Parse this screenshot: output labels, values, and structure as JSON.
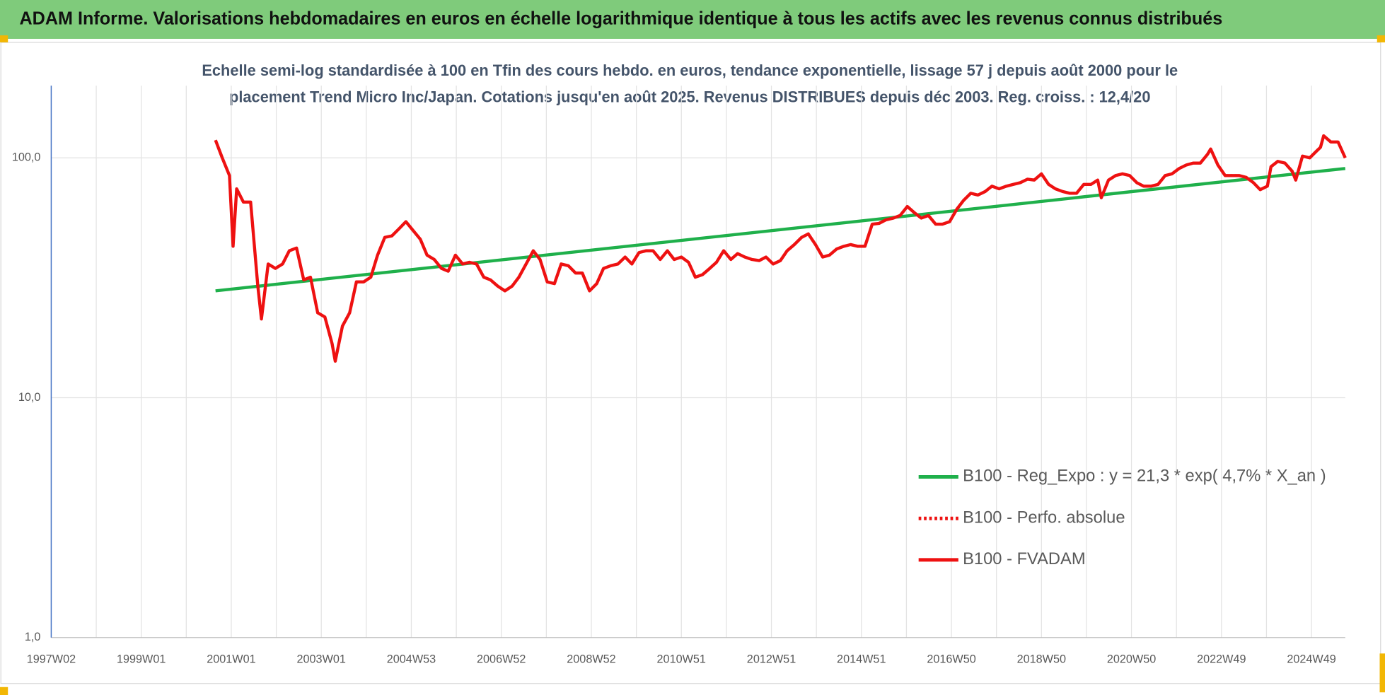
{
  "chart_data": {
    "type": "line",
    "title": "ADAM Informe. Valorisations hebdomadaires en euros en échelle logarithmique identique à tous les actifs avec les revenus connus distribués",
    "subtitle": [
      "Echelle semi-log standardisée à 100 en Tfin des cours hebdo. en euros, tendance exponentielle, lissage 57 j depuis août 2000 pour le",
      "placement Trend Micro Inc/Japan. Cotations jusqu'en août 2025. Revenus DISTRIBUES depuis déc 2003. Reg. croiss. : 12,4/20"
    ],
    "log_scale_y": true,
    "grid": true,
    "legend": "lower right",
    "xlim": [
      1997,
      2025.75
    ],
    "ylim": [
      1,
      200
    ],
    "yticks": [
      {
        "value": 1,
        "label": "1,0"
      },
      {
        "value": 10,
        "label": "10,0"
      },
      {
        "value": 100,
        "label": "100,0"
      }
    ],
    "xticks": [
      {
        "value": 1997,
        "label": "1997W02"
      },
      {
        "value": 1999,
        "label": "1999W01"
      },
      {
        "value": 2001,
        "label": "2001W01"
      },
      {
        "value": 2003,
        "label": "2003W01"
      },
      {
        "value": 2005,
        "label": "2004W53"
      },
      {
        "value": 2007,
        "label": "2006W52"
      },
      {
        "value": 2009,
        "label": "2008W52"
      },
      {
        "value": 2011,
        "label": "2010W51"
      },
      {
        "value": 2013,
        "label": "2012W51"
      },
      {
        "value": 2015,
        "label": "2014W51"
      },
      {
        "value": 2017,
        "label": "2016W50"
      },
      {
        "value": 2019,
        "label": "2018W50"
      },
      {
        "value": 2021,
        "label": "2020W50"
      },
      {
        "value": 2023,
        "label": "2022W49"
      },
      {
        "value": 2025,
        "label": "2024W49"
      }
    ],
    "x_minor_grid": [
      1998,
      2000,
      2002,
      2004,
      2006,
      2008,
      2010,
      2012,
      2014,
      2016,
      2018,
      2020,
      2022,
      2024
    ],
    "series": [
      {
        "name": "B100 - Reg_Expo : y = 21,3 * exp( 4,7% *  X_an )",
        "color": "#1fb04b",
        "style": "solid",
        "x": [
          2000.65,
          2025.75
        ],
        "values": [
          27.9,
          90.3
        ]
      },
      {
        "name": "B100 - Perfo. absolue",
        "color": "#ee1111",
        "style": "dotted",
        "x": [
          2000.65,
          2000.8,
          2000.96,
          2001.04,
          2001.12,
          2001.27,
          2001.43,
          2001.59,
          2001.67,
          2001.82,
          2001.98,
          2002.14,
          2002.29,
          2002.45,
          2002.61,
          2002.76,
          2002.92,
          2003.08,
          2003.24,
          2003.31,
          2003.47,
          2003.63,
          2003.78,
          2003.94,
          2004.1,
          2004.25,
          2004.41,
          2004.57,
          2004.73,
          2004.88,
          2005.04,
          2005.2,
          2005.35,
          2005.51,
          2005.67,
          2005.82,
          2005.98,
          2006.14,
          2006.29,
          2006.45,
          2006.61,
          2006.76,
          2006.92,
          2007.08,
          2007.24,
          2007.39,
          2007.55,
          2007.71,
          2007.86,
          2008.02,
          2008.18,
          2008.33,
          2008.49,
          2008.65,
          2008.8,
          2008.96,
          2009.12,
          2009.27,
          2009.43,
          2009.59,
          2009.75,
          2009.9,
          2010.06,
          2010.22,
          2010.37,
          2010.53,
          2010.69,
          2010.84,
          2011.0,
          2011.16,
          2011.31,
          2011.47,
          2011.63,
          2011.78,
          2011.94,
          2012.1,
          2012.25,
          2012.41,
          2012.57,
          2012.73,
          2012.88,
          2013.04,
          2013.2,
          2013.35,
          2013.51,
          2013.67,
          2013.82,
          2013.98,
          2014.14,
          2014.29,
          2014.45,
          2014.61,
          2014.76,
          2014.92,
          2015.08,
          2015.24,
          2015.39,
          2015.55,
          2015.71,
          2015.86,
          2016.02,
          2016.18,
          2016.33,
          2016.49,
          2016.65,
          2016.8,
          2016.96,
          2017.12,
          2017.27,
          2017.43,
          2017.59,
          2017.75,
          2017.9,
          2018.06,
          2018.22,
          2018.37,
          2018.53,
          2018.69,
          2018.84,
          2019.0,
          2019.16,
          2019.31,
          2019.47,
          2019.63,
          2019.78,
          2019.94,
          2020.1,
          2020.25,
          2020.33,
          2020.49,
          2020.65,
          2020.8,
          2020.96,
          2021.12,
          2021.27,
          2021.43,
          2021.59,
          2021.75,
          2021.9,
          2022.06,
          2022.22,
          2022.37,
          2022.53,
          2022.69,
          2022.76,
          2022.92,
          2023.08,
          2023.24,
          2023.39,
          2023.55,
          2023.71,
          2023.86,
          2024.02,
          2024.1,
          2024.25,
          2024.41,
          2024.57,
          2024.65,
          2024.8,
          2024.96,
          2025.12,
          2025.2,
          2025.27,
          2025.43,
          2025.59,
          2025.75
        ],
        "values": [
          118.5,
          100.0,
          84.4,
          42.8,
          74.3,
          65.4,
          65.4,
          29.2,
          21.3,
          36.1,
          34.6,
          36.1,
          41.0,
          42.1,
          31.0,
          31.8,
          22.6,
          21.7,
          16.8,
          14.2,
          19.9,
          22.6,
          30.4,
          30.4,
          31.8,
          39.3,
          46.6,
          47.3,
          50.7,
          54.2,
          49.8,
          45.8,
          39.3,
          37.7,
          34.6,
          33.7,
          39.3,
          36.1,
          36.7,
          36.1,
          31.8,
          31.0,
          29.2,
          27.9,
          29.2,
          31.8,
          36.1,
          41.0,
          37.7,
          30.4,
          29.9,
          36.1,
          35.5,
          33.1,
          33.1,
          27.9,
          29.9,
          34.6,
          35.5,
          36.1,
          38.6,
          36.1,
          40.3,
          41.0,
          41.0,
          37.7,
          41.0,
          37.7,
          38.6,
          36.7,
          31.8,
          32.6,
          34.6,
          36.7,
          41.0,
          37.7,
          39.9,
          38.6,
          37.7,
          37.3,
          38.6,
          36.1,
          37.3,
          41.0,
          43.5,
          46.6,
          48.2,
          43.5,
          38.6,
          39.3,
          41.7,
          42.8,
          43.5,
          42.8,
          42.8,
          52.9,
          53.3,
          55.2,
          56.1,
          57.5,
          62.7,
          59.0,
          56.1,
          57.5,
          52.9,
          52.9,
          54.2,
          61.1,
          66.5,
          71.2,
          70.0,
          72.4,
          76.2,
          74.3,
          76.2,
          77.5,
          78.8,
          81.5,
          80.8,
          85.8,
          77.5,
          74.3,
          72.4,
          71.2,
          71.2,
          77.5,
          77.5,
          80.8,
          68.2,
          80.8,
          84.4,
          85.8,
          84.4,
          78.8,
          76.2,
          76.2,
          77.5,
          84.4,
          85.8,
          90.3,
          93.4,
          95.1,
          95.1,
          103.5,
          108.9,
          93.4,
          84.4,
          84.4,
          84.4,
          82.9,
          78.8,
          73.7,
          76.2,
          91.9,
          96.7,
          95.1,
          88.0,
          80.8,
          101.7,
          100.0,
          107.1,
          110.7,
          123.6,
          116.5,
          116.5,
          100.0
        ]
      },
      {
        "name": "B100 - FVADAM",
        "color": "#ee1111",
        "style": "solid",
        "x": [
          2000.65,
          2000.8,
          2000.96,
          2001.04,
          2001.12,
          2001.27,
          2001.43,
          2001.59,
          2001.67,
          2001.82,
          2001.98,
          2002.14,
          2002.29,
          2002.45,
          2002.61,
          2002.76,
          2002.92,
          2003.08,
          2003.24,
          2003.31,
          2003.47,
          2003.63,
          2003.78,
          2003.94,
          2004.1,
          2004.25,
          2004.41,
          2004.57,
          2004.73,
          2004.88,
          2005.04,
          2005.2,
          2005.35,
          2005.51,
          2005.67,
          2005.82,
          2005.98,
          2006.14,
          2006.29,
          2006.45,
          2006.61,
          2006.76,
          2006.92,
          2007.08,
          2007.24,
          2007.39,
          2007.55,
          2007.71,
          2007.86,
          2008.02,
          2008.18,
          2008.33,
          2008.49,
          2008.65,
          2008.8,
          2008.96,
          2009.12,
          2009.27,
          2009.43,
          2009.59,
          2009.75,
          2009.9,
          2010.06,
          2010.22,
          2010.37,
          2010.53,
          2010.69,
          2010.84,
          2011.0,
          2011.16,
          2011.31,
          2011.47,
          2011.63,
          2011.78,
          2011.94,
          2012.1,
          2012.25,
          2012.41,
          2012.57,
          2012.73,
          2012.88,
          2013.04,
          2013.2,
          2013.35,
          2013.51,
          2013.67,
          2013.82,
          2013.98,
          2014.14,
          2014.29,
          2014.45,
          2014.61,
          2014.76,
          2014.92,
          2015.08,
          2015.24,
          2015.39,
          2015.55,
          2015.71,
          2015.86,
          2016.02,
          2016.18,
          2016.33,
          2016.49,
          2016.65,
          2016.8,
          2016.96,
          2017.12,
          2017.27,
          2017.43,
          2017.59,
          2017.75,
          2017.9,
          2018.06,
          2018.22,
          2018.37,
          2018.53,
          2018.69,
          2018.84,
          2019.0,
          2019.16,
          2019.31,
          2019.47,
          2019.63,
          2019.78,
          2019.94,
          2020.1,
          2020.25,
          2020.33,
          2020.49,
          2020.65,
          2020.8,
          2020.96,
          2021.12,
          2021.27,
          2021.43,
          2021.59,
          2021.75,
          2021.9,
          2022.06,
          2022.22,
          2022.37,
          2022.53,
          2022.69,
          2022.76,
          2022.92,
          2023.08,
          2023.24,
          2023.39,
          2023.55,
          2023.71,
          2023.86,
          2024.02,
          2024.1,
          2024.25,
          2024.41,
          2024.57,
          2024.65,
          2024.8,
          2024.96,
          2025.12,
          2025.2,
          2025.27,
          2025.43,
          2025.59,
          2025.75
        ],
        "values": [
          118.5,
          100.0,
          84.4,
          42.8,
          74.3,
          65.4,
          65.4,
          29.2,
          21.3,
          36.1,
          34.6,
          36.1,
          41.0,
          42.1,
          31.0,
          31.8,
          22.6,
          21.7,
          16.8,
          14.2,
          19.9,
          22.6,
          30.4,
          30.4,
          31.8,
          39.3,
          46.6,
          47.3,
          50.7,
          54.2,
          49.8,
          45.8,
          39.3,
          37.7,
          34.6,
          33.7,
          39.3,
          36.1,
          36.7,
          36.1,
          31.8,
          31.0,
          29.2,
          27.9,
          29.2,
          31.8,
          36.1,
          41.0,
          37.7,
          30.4,
          29.9,
          36.1,
          35.5,
          33.1,
          33.1,
          27.9,
          29.9,
          34.6,
          35.5,
          36.1,
          38.6,
          36.1,
          40.3,
          41.0,
          41.0,
          37.7,
          41.0,
          37.7,
          38.6,
          36.7,
          31.8,
          32.6,
          34.6,
          36.7,
          41.0,
          37.7,
          39.9,
          38.6,
          37.7,
          37.3,
          38.6,
          36.1,
          37.3,
          41.0,
          43.5,
          46.6,
          48.2,
          43.5,
          38.6,
          39.3,
          41.7,
          42.8,
          43.5,
          42.8,
          42.8,
          52.9,
          53.3,
          55.2,
          56.1,
          57.5,
          62.7,
          59.0,
          56.1,
          57.5,
          52.9,
          52.9,
          54.2,
          61.1,
          66.5,
          71.2,
          70.0,
          72.4,
          76.2,
          74.3,
          76.2,
          77.5,
          78.8,
          81.5,
          80.8,
          85.8,
          77.5,
          74.3,
          72.4,
          71.2,
          71.2,
          77.5,
          77.5,
          80.8,
          68.2,
          80.8,
          84.4,
          85.8,
          84.4,
          78.8,
          76.2,
          76.2,
          77.5,
          84.4,
          85.8,
          90.3,
          93.4,
          95.1,
          95.1,
          103.5,
          108.9,
          93.4,
          84.4,
          84.4,
          84.4,
          82.9,
          78.8,
          73.7,
          76.2,
          91.9,
          96.7,
          95.1,
          88.0,
          80.8,
          101.7,
          100.0,
          107.1,
          110.7,
          123.6,
          116.5,
          116.5,
          100.0
        ]
      }
    ]
  }
}
